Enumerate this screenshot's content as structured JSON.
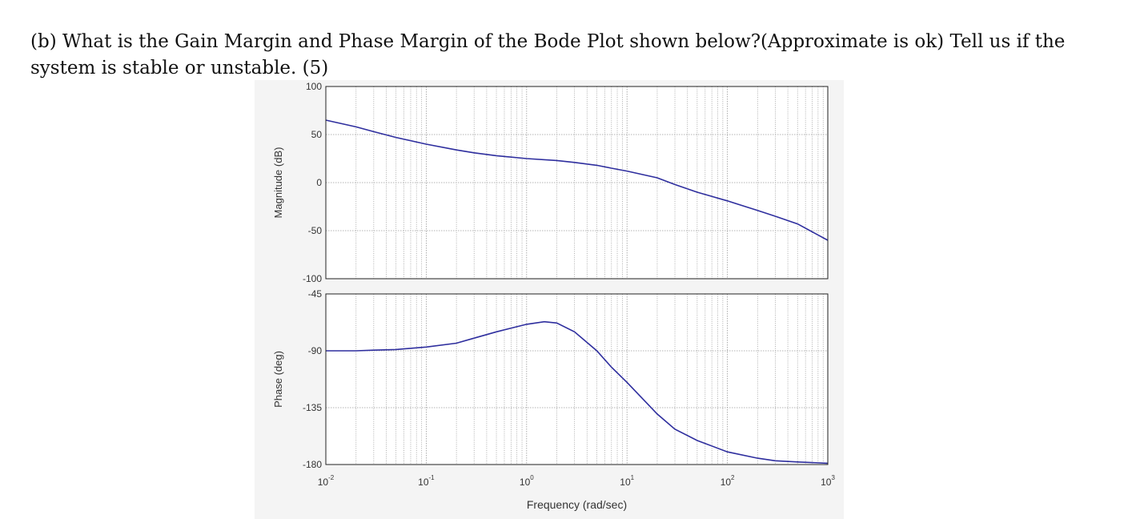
{
  "question": {
    "text": "(b) What is the Gain Margin and Phase Margin of the Bode Plot shown below?(Approximate is ok) Tell us if the system is stable or unstable. (5)"
  },
  "chart_data": {
    "type": "line",
    "xscale": "log",
    "xlabel": "Frequency  (rad/sec)",
    "xlim": [
      0.01,
      1000
    ],
    "x_tick_labels": [
      {
        "base": "10",
        "exp": "-2"
      },
      {
        "base": "10",
        "exp": "-1"
      },
      {
        "base": "10",
        "exp": "0"
      },
      {
        "base": "10",
        "exp": "1"
      },
      {
        "base": "10",
        "exp": "2"
      },
      {
        "base": "10",
        "exp": "3"
      }
    ],
    "line_color": "#2e2e9e",
    "grid": true,
    "subplots": [
      {
        "name": "magnitude",
        "ylabel": "Magnitude (dB)",
        "ylim": [
          -100,
          100
        ],
        "yticks": [
          100,
          50,
          0,
          -50,
          -100
        ],
        "ytick_labels": [
          "100",
          "50",
          "0",
          "-50",
          "-100"
        ],
        "x": [
          0.01,
          0.02,
          0.03,
          0.05,
          0.1,
          0.2,
          0.3,
          0.5,
          1,
          2,
          3,
          5,
          7,
          10,
          20,
          30,
          50,
          100,
          200,
          300,
          500,
          1000
        ],
        "y": [
          65,
          58,
          53,
          47,
          40,
          34,
          31,
          28,
          25,
          23,
          21,
          18,
          15,
          12,
          5,
          -2,
          -10,
          -19,
          -29,
          -35,
          -43,
          -60
        ]
      },
      {
        "name": "phase",
        "ylabel": "Phase (deg)",
        "ylim": [
          -180,
          -45
        ],
        "yticks": [
          -45,
          -90,
          -135,
          -180
        ],
        "ytick_labels": [
          "-45",
          "-90",
          "-135",
          "-180"
        ],
        "x": [
          0.01,
          0.02,
          0.03,
          0.05,
          0.1,
          0.2,
          0.3,
          0.5,
          1,
          1.5,
          2,
          3,
          5,
          7,
          10,
          20,
          30,
          50,
          100,
          200,
          300,
          500,
          1000
        ],
        "y": [
          -90,
          -90,
          -89.5,
          -89,
          -87,
          -84,
          -80,
          -75,
          -69,
          -67,
          -68,
          -75,
          -90,
          -103,
          -115,
          -140,
          -152,
          -161,
          -170,
          -175,
          -177,
          -178,
          -179
        ]
      }
    ]
  }
}
